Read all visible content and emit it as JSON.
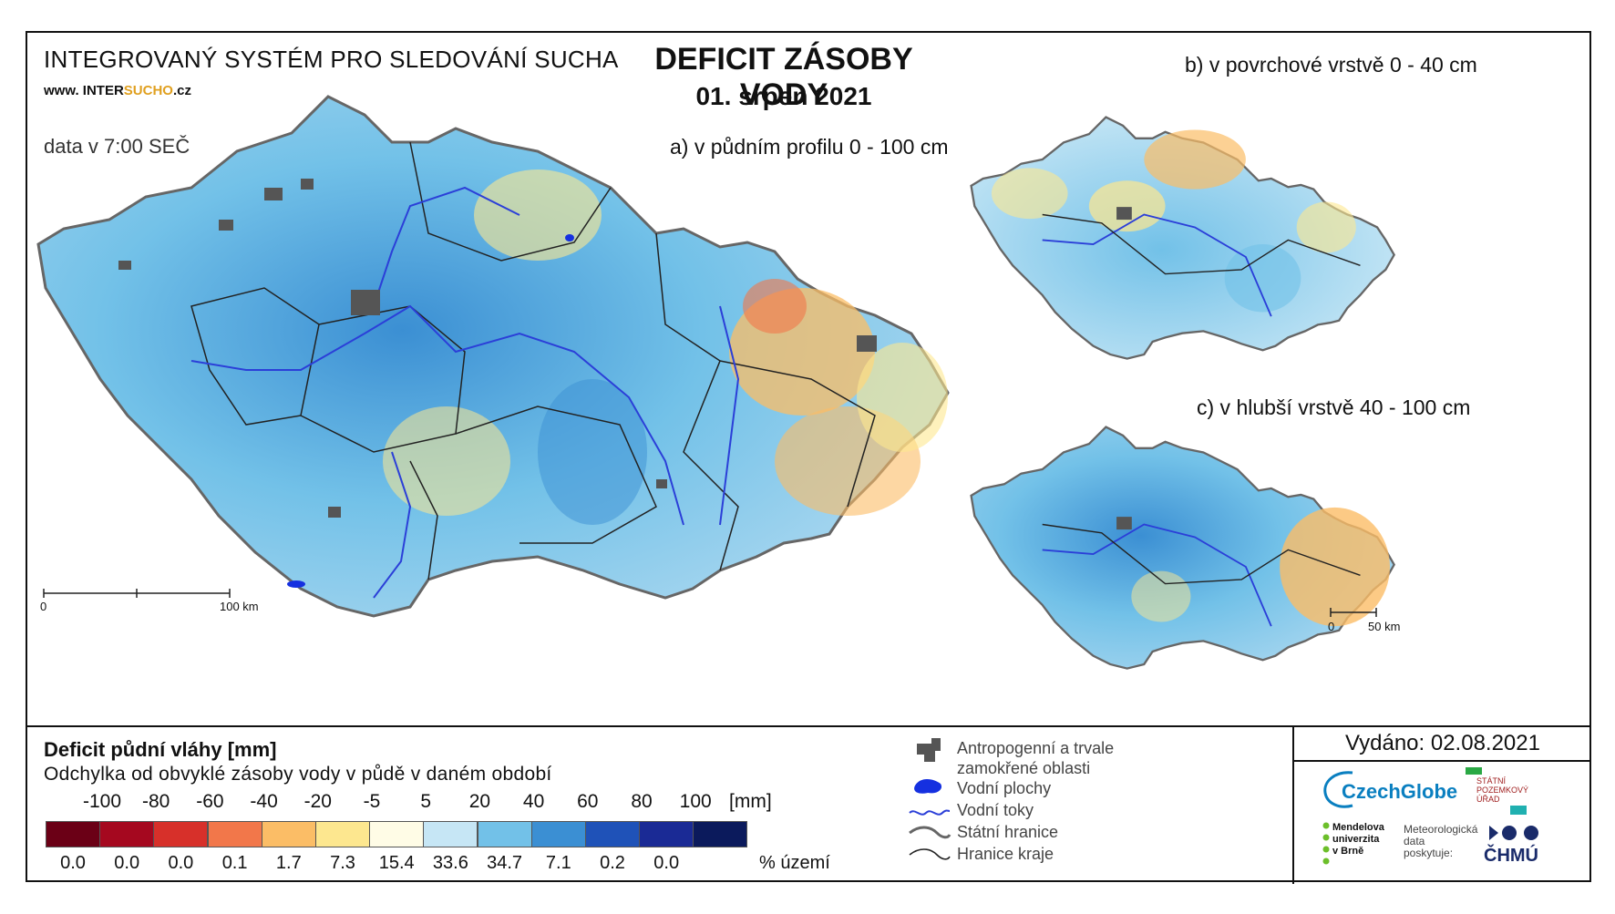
{
  "header": {
    "system_title": "INTEGROVANÝ SYSTÉM PRO SLEDOVÁNÍ SUCHA",
    "website_prefix": "www. INTER",
    "website_highlight": "SUCHO",
    "website_suffix": ".cz",
    "data_time": "data v 7:00 SEČ",
    "main_title": "DEFICIT ZÁSOBY VODY",
    "date": "01. srpen 2021"
  },
  "maps": {
    "a_title": "a) v půdním profilu 0 - 100 cm",
    "b_title": "b) v povrchové vrstvě 0 - 40 cm",
    "c_title": "c) v hlubší vrstvě 40 - 100 cm",
    "scale_main": {
      "zero": "0",
      "end": "100 km"
    },
    "scale_small": {
      "zero": "0",
      "end": "50 km"
    }
  },
  "legend": {
    "title": "Deficit půdní vláhy  [mm]",
    "subtitle": "Odchylka od obvyklé zásoby vody v půdě v daném období",
    "thresholds": [
      "-100",
      "-80",
      "-60",
      "-40",
      "-20",
      "-5",
      "5",
      "20",
      "40",
      "60",
      "80",
      "100"
    ],
    "unit": "[mm]",
    "classes": [
      {
        "color": "#6b0016",
        "percent": "0.0"
      },
      {
        "color": "#a5081f",
        "percent": "0.0"
      },
      {
        "color": "#d7302a",
        "percent": "0.0"
      },
      {
        "color": "#f2774a",
        "percent": "0.1"
      },
      {
        "color": "#fbbd66",
        "percent": "1.7"
      },
      {
        "color": "#fde78f",
        "percent": "7.3"
      },
      {
        "color": "#fffce6",
        "percent": "15.4"
      },
      {
        "color": "#c6e6f5",
        "percent": "33.6"
      },
      {
        "color": "#72c1e8",
        "percent": "34.7"
      },
      {
        "color": "#3b8fd3",
        "percent": "7.1"
      },
      {
        "color": "#1f52b8",
        "percent": "0.2"
      },
      {
        "color": "#1a2a95",
        "percent": "0.0"
      },
      {
        "color": "#0b1a5c",
        "percent": ""
      }
    ],
    "percent_unit": "% území",
    "symbols": [
      {
        "icon": "urban-area-icon",
        "label": "Antropogenní a trvale zamokřené oblasti"
      },
      {
        "icon": "water-body-icon",
        "label": "Vodní plochy"
      },
      {
        "icon": "river-icon",
        "label": "Vodní toky"
      },
      {
        "icon": "state-border-icon",
        "label": "Státní hranice"
      },
      {
        "icon": "region-border-icon",
        "label": "Hranice kraje"
      }
    ]
  },
  "footer": {
    "issued": "Vydáno: 02.08.2021",
    "logo_czechglobe": "CzechGlobe",
    "logo_spu_lines": [
      "STÁTNÍ",
      "POZEMKOVÝ",
      "ÚŘAD"
    ],
    "logo_mendelu_lines": [
      "Mendelova",
      "univerzita",
      "v Brně"
    ],
    "data_provider_lines": [
      "Meteorologická",
      "data",
      "poskytuje:"
    ],
    "logo_chmu": "ČHMÚ"
  },
  "colors": {
    "river": "#2b3fd8",
    "urban": "#555555",
    "water": "#1530e0",
    "border": "#222222"
  }
}
